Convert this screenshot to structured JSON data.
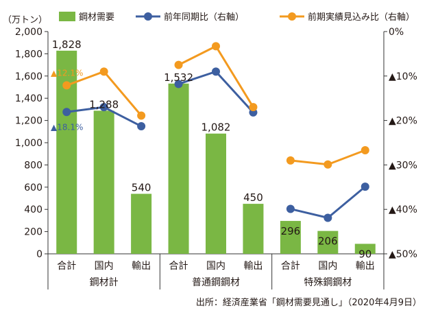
{
  "chart_data": {
    "type": "bar",
    "y_left": {
      "unit_label": "（万トン）",
      "range": [
        0,
        2000
      ],
      "ticks": [
        "0",
        "200",
        "400",
        "600",
        "800",
        "1,000",
        "1,200",
        "1,400",
        "1,600",
        "1,800",
        "2,000"
      ]
    },
    "y_right": {
      "range": [
        0,
        -50
      ],
      "ticks": [
        "0%",
        "▲10%",
        "▲20%",
        "▲30%",
        "▲40%",
        "▲50%"
      ]
    },
    "legend": {
      "position": "top",
      "items": [
        {
          "label": "鋼材需要",
          "kind": "bar",
          "color": "#7ab744"
        },
        {
          "label": "前年同期比（右軸）",
          "kind": "line",
          "color": "#3d5fa0"
        },
        {
          "label": "前期実績見込み比（右軸）",
          "kind": "line",
          "color": "#f39a1f"
        }
      ]
    },
    "groups": [
      {
        "label": "鋼材計",
        "categories": [
          "合計",
          "国内",
          "輸出"
        ]
      },
      {
        "label": "普通鋼鋼材",
        "categories": [
          "合計",
          "国内",
          "輸出"
        ]
      },
      {
        "label": "特殊鋼鋼材",
        "categories": [
          "合計",
          "国内",
          "輸出"
        ]
      }
    ],
    "bar_series": {
      "name": "鋼材需要",
      "values": [
        1828,
        1288,
        540,
        1532,
        1082,
        450,
        296,
        206,
        90
      ],
      "labels": [
        "1,828",
        "1,288",
        "540",
        "1,532",
        "1,082",
        "450",
        "296",
        "206",
        "90"
      ]
    },
    "line_series": [
      {
        "name": "前年同期比（右軸）",
        "color": "#3d5fa0",
        "values": [
          -18.1,
          -17.0,
          -21.3,
          -11.8,
          -9.0,
          -18.2,
          -39.9,
          -41.9,
          -34.9
        ]
      },
      {
        "name": "前期実績見込み比（右軸）",
        "color": "#f39a1f",
        "values": [
          -12.1,
          -9.0,
          -18.9,
          -7.5,
          -3.3,
          -17.0,
          -29.0,
          -29.9,
          -26.7
        ]
      }
    ],
    "annotations": [
      {
        "text": "▲12.1%",
        "series": "前期実績見込み比（右軸）",
        "color": "#f39a1f",
        "value": -12.1
      },
      {
        "text": "▲18.1%",
        "series": "前年同期比（右軸）",
        "color": "#3d5fa0",
        "value": -18.1
      }
    ],
    "colors": {
      "bar": "#7ab744",
      "axis": "#333333",
      "text": "#231815"
    },
    "source": "出所：経済産業省「鋼材需要見通し」（2020年4月9日）"
  }
}
